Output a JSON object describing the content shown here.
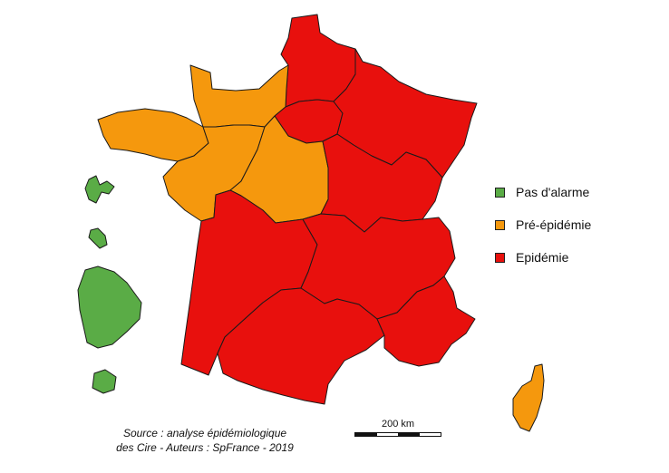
{
  "colors": {
    "pas_alarme": "#5aac46",
    "pre_epidemie": "#f5980d",
    "epidemie": "#e8100d"
  },
  "legend": [
    {
      "label": "Pas d'alarme",
      "status": "pas_alarme"
    },
    {
      "label": "Pré-épidémie",
      "status": "pre_epidemie"
    },
    {
      "label": "Epidémie",
      "status": "epidemie"
    }
  ],
  "regions": [
    {
      "name": "Hauts-de-France",
      "status": "epidemie"
    },
    {
      "name": "Normandie",
      "status": "pre_epidemie"
    },
    {
      "name": "Bretagne",
      "status": "pre_epidemie"
    },
    {
      "name": "Pays de la Loire",
      "status": "pre_epidemie"
    },
    {
      "name": "Centre-Val de Loire",
      "status": "pre_epidemie"
    },
    {
      "name": "Île-de-France",
      "status": "epidemie"
    },
    {
      "name": "Grand Est",
      "status": "epidemie"
    },
    {
      "name": "Bourgogne-Franche-Comté",
      "status": "epidemie"
    },
    {
      "name": "Nouvelle-Aquitaine",
      "status": "epidemie"
    },
    {
      "name": "Auvergne-Rhône-Alpes",
      "status": "epidemie"
    },
    {
      "name": "Occitanie",
      "status": "epidemie"
    },
    {
      "name": "Provence-Alpes-Côte d'Azur",
      "status": "epidemie"
    },
    {
      "name": "Corse",
      "status": "pre_epidemie"
    },
    {
      "name": "Guadeloupe",
      "status": "pas_alarme"
    },
    {
      "name": "Martinique",
      "status": "pas_alarme"
    },
    {
      "name": "Guyane",
      "status": "pas_alarme"
    },
    {
      "name": "La Réunion",
      "status": "pas_alarme"
    }
  ],
  "scale": {
    "label": "200 km"
  },
  "source": {
    "line1": "Source : analyse épidémiologique",
    "line2": "des Cire - Auteurs : SpFrance -  2019"
  }
}
